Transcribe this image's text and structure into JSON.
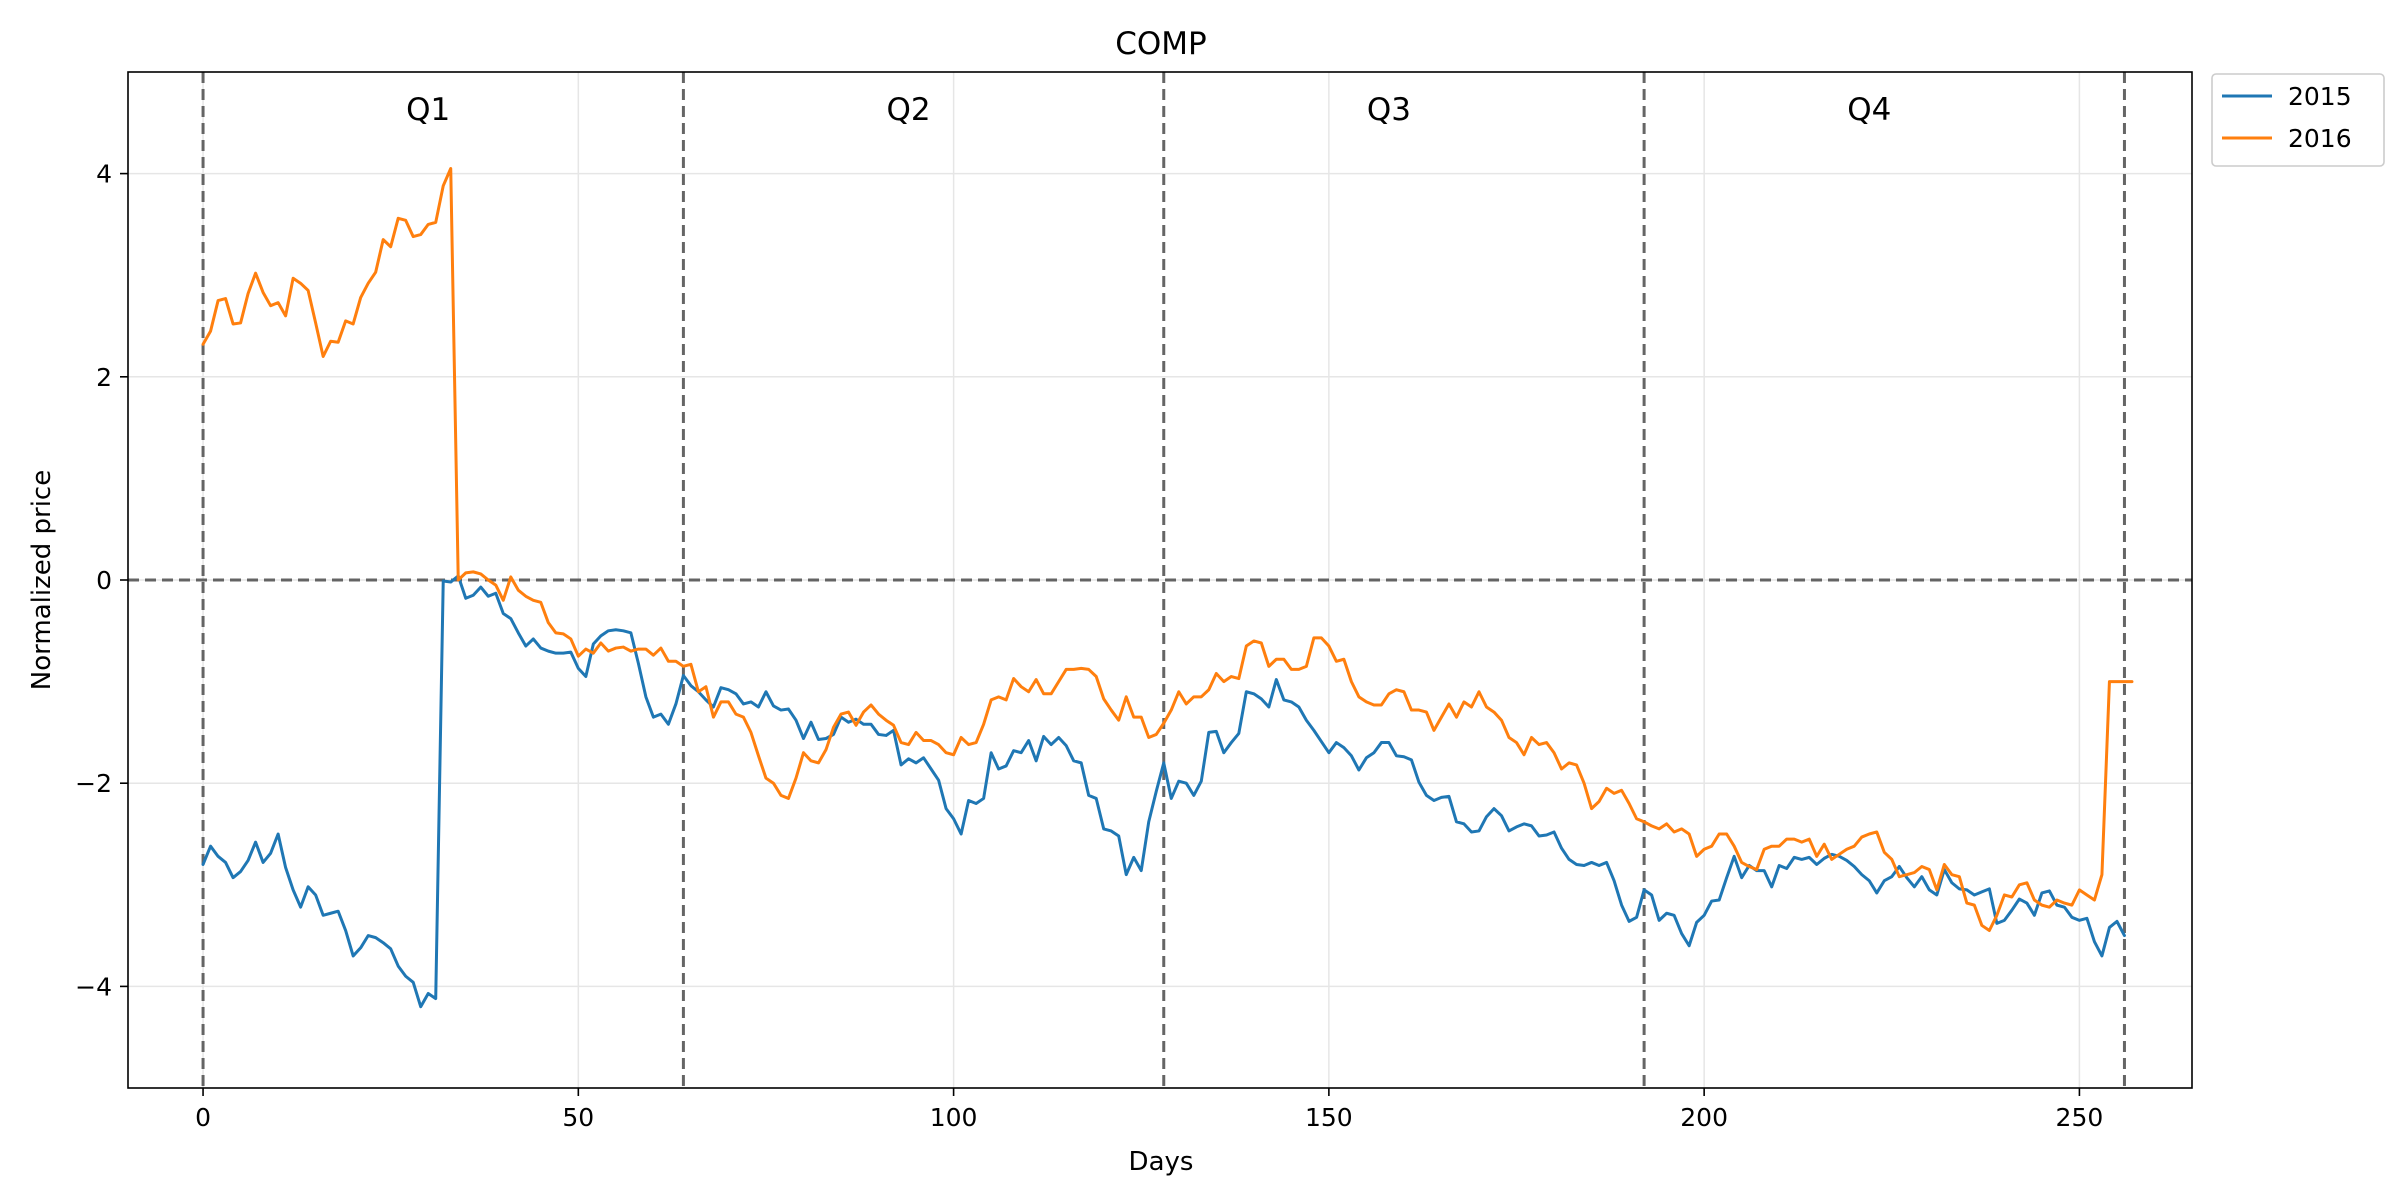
{
  "chart_data": {
    "type": "line",
    "title": "COMP",
    "xlabel": "Days",
    "ylabel": "Normalized price",
    "xlim": [
      -10,
      265
    ],
    "ylim": [
      -5,
      5
    ],
    "xticks": [
      0,
      50,
      100,
      150,
      200,
      250
    ],
    "yticks": [
      -4,
      -2,
      0,
      2,
      4
    ],
    "ytick_labels": [
      "−4",
      "−2",
      "0",
      "2",
      "4"
    ],
    "grid": true,
    "legend_position": "outside-top-right",
    "hlines": [
      0
    ],
    "vlines": [
      0,
      64,
      128,
      192,
      256
    ],
    "quarters": [
      {
        "label": "Q1",
        "x": 30
      },
      {
        "label": "Q2",
        "x": 94
      },
      {
        "label": "Q3",
        "x": 158
      },
      {
        "label": "Q4",
        "x": 222
      }
    ],
    "series": [
      {
        "name": "2015",
        "color": "#1f77b4",
        "values": [
          -2.8,
          -2.62,
          -2.72,
          -2.78,
          -2.93,
          -2.87,
          -2.76,
          -2.58,
          -2.78,
          -2.69,
          -2.5,
          -2.83,
          -3.05,
          -3.22,
          -3.02,
          -3.1,
          -3.3,
          -3.28,
          -3.26,
          -3.45,
          -3.7,
          -3.62,
          -3.5,
          -3.52,
          -3.57,
          -3.63,
          -3.8,
          -3.9,
          -3.96,
          -4.2,
          -4.07,
          -4.12,
          -0.01,
          -0.02,
          0.04,
          -0.18,
          -0.15,
          -0.07,
          -0.16,
          -0.13,
          -0.33,
          -0.38,
          -0.52,
          -0.65,
          -0.58,
          -0.67,
          -0.7,
          -0.72,
          -0.72,
          -0.71,
          -0.87,
          -0.95,
          -0.63,
          -0.55,
          -0.5,
          -0.49,
          -0.5,
          -0.52,
          -0.82,
          -1.15,
          -1.35,
          -1.32,
          -1.42,
          -1.22,
          -0.94,
          -1.04,
          -1.1,
          -1.18,
          -1.25,
          -1.06,
          -1.08,
          -1.12,
          -1.22,
          -1.2,
          -1.25,
          -1.1,
          -1.24,
          -1.28,
          -1.27,
          -1.38,
          -1.56,
          -1.4,
          -1.57,
          -1.56,
          -1.52,
          -1.35,
          -1.4,
          -1.37,
          -1.42,
          -1.42,
          -1.52,
          -1.53,
          -1.48,
          -1.82,
          -1.76,
          -1.8,
          -1.75,
          -1.86,
          -1.97,
          -2.25,
          -2.35,
          -2.5,
          -2.17,
          -2.2,
          -2.15,
          -1.7,
          -1.86,
          -1.83,
          -1.68,
          -1.7,
          -1.58,
          -1.78,
          -1.54,
          -1.62,
          -1.55,
          -1.63,
          -1.78,
          -1.8,
          -2.12,
          -2.15,
          -2.45,
          -2.47,
          -2.52,
          -2.9,
          -2.73,
          -2.86,
          -2.38,
          -2.08,
          -1.8,
          -2.15,
          -1.98,
          -2.0,
          -2.12,
          -1.98,
          -1.5,
          -1.49,
          -1.7,
          -1.6,
          -1.51,
          -1.1,
          -1.12,
          -1.17,
          -1.25,
          -0.98,
          -1.18,
          -1.2,
          -1.25,
          -1.38,
          -1.48,
          -1.59,
          -1.7,
          -1.6,
          -1.65,
          -1.73,
          -1.87,
          -1.75,
          -1.7,
          -1.6,
          -1.6,
          -1.73,
          -1.74,
          -1.77,
          -1.99,
          -2.12,
          -2.17,
          -2.14,
          -2.13,
          -2.38,
          -2.4,
          -2.48,
          -2.47,
          -2.33,
          -2.25,
          -2.32,
          -2.47,
          -2.43,
          -2.4,
          -2.42,
          -2.52,
          -2.51,
          -2.48,
          -2.64,
          -2.75,
          -2.8,
          -2.81,
          -2.78,
          -2.81,
          -2.78,
          -2.96,
          -3.2,
          -3.36,
          -3.32,
          -3.05,
          -3.1,
          -3.35,
          -3.28,
          -3.3,
          -3.48,
          -3.6,
          -3.37,
          -3.3,
          -3.16,
          -3.15,
          -2.93,
          -2.72,
          -2.93,
          -2.81,
          -2.86,
          -2.86,
          -3.02,
          -2.81,
          -2.84,
          -2.73,
          -2.75,
          -2.73,
          -2.8,
          -2.74,
          -2.7,
          -2.72,
          -2.76,
          -2.82,
          -2.9,
          -2.96,
          -3.08,
          -2.96,
          -2.92,
          -2.82,
          -2.93,
          -3.02,
          -2.92,
          -3.05,
          -3.1,
          -2.85,
          -2.98,
          -3.04,
          -3.05,
          -3.1,
          -3.07,
          -3.04,
          -3.38,
          -3.35,
          -3.25,
          -3.14,
          -3.18,
          -3.3,
          -3.08,
          -3.06,
          -3.2,
          -3.22,
          -3.32,
          -3.35,
          -3.33,
          -3.56,
          -3.7,
          -3.42,
          -3.36,
          -3.5
        ],
        "values_start_x": 0
      },
      {
        "name": "2016",
        "color": "#ff7f0e",
        "values": [
          2.32,
          2.45,
          2.75,
          2.77,
          2.52,
          2.53,
          2.82,
          3.02,
          2.83,
          2.7,
          2.73,
          2.6,
          2.97,
          2.92,
          2.85,
          2.53,
          2.2,
          2.35,
          2.34,
          2.55,
          2.52,
          2.78,
          2.92,
          3.03,
          3.35,
          3.28,
          3.56,
          3.54,
          3.38,
          3.4,
          3.5,
          3.52,
          3.88,
          4.05,
          0.0,
          0.07,
          0.08,
          0.06,
          0.0,
          -0.05,
          -0.2,
          0.03,
          -0.1,
          -0.16,
          -0.2,
          -0.22,
          -0.42,
          -0.52,
          -0.53,
          -0.58,
          -0.75,
          -0.68,
          -0.72,
          -0.62,
          -0.7,
          -0.67,
          -0.66,
          -0.7,
          -0.68,
          -0.68,
          -0.74,
          -0.67,
          -0.8,
          -0.8,
          -0.85,
          -0.83,
          -1.1,
          -1.05,
          -1.35,
          -1.2,
          -1.2,
          -1.32,
          -1.35,
          -1.5,
          -1.73,
          -1.95,
          -2.0,
          -2.12,
          -2.15,
          -1.95,
          -1.7,
          -1.78,
          -1.8,
          -1.67,
          -1.45,
          -1.32,
          -1.3,
          -1.43,
          -1.3,
          -1.23,
          -1.32,
          -1.38,
          -1.43,
          -1.6,
          -1.62,
          -1.5,
          -1.58,
          -1.58,
          -1.62,
          -1.7,
          -1.72,
          -1.55,
          -1.62,
          -1.6,
          -1.42,
          -1.18,
          -1.15,
          -1.18,
          -0.97,
          -1.05,
          -1.1,
          -0.98,
          -1.12,
          -1.12,
          -1.0,
          -0.88,
          -0.88,
          -0.87,
          -0.88,
          -0.95,
          -1.17,
          -1.28,
          -1.38,
          -1.15,
          -1.35,
          -1.35,
          -1.55,
          -1.52,
          -1.41,
          -1.28,
          -1.1,
          -1.22,
          -1.15,
          -1.15,
          -1.08,
          -0.92,
          -1.0,
          -0.95,
          -0.97,
          -0.65,
          -0.6,
          -0.62,
          -0.85,
          -0.78,
          -0.78,
          -0.88,
          -0.88,
          -0.85,
          -0.57,
          -0.57,
          -0.65,
          -0.8,
          -0.78,
          -1.0,
          -1.15,
          -1.2,
          -1.23,
          -1.23,
          -1.12,
          -1.08,
          -1.1,
          -1.28,
          -1.28,
          -1.3,
          -1.48,
          -1.35,
          -1.22,
          -1.35,
          -1.2,
          -1.25,
          -1.1,
          -1.25,
          -1.3,
          -1.38,
          -1.55,
          -1.6,
          -1.72,
          -1.55,
          -1.62,
          -1.6,
          -1.7,
          -1.86,
          -1.8,
          -1.82,
          -2.0,
          -2.25,
          -2.18,
          -2.05,
          -2.1,
          -2.07,
          -2.2,
          -2.35,
          -2.38,
          -2.42,
          -2.45,
          -2.4,
          -2.48,
          -2.45,
          -2.5,
          -2.72,
          -2.65,
          -2.62,
          -2.5,
          -2.5,
          -2.62,
          -2.78,
          -2.82,
          -2.85,
          -2.65,
          -2.62,
          -2.62,
          -2.55,
          -2.55,
          -2.58,
          -2.55,
          -2.72,
          -2.6,
          -2.75,
          -2.7,
          -2.65,
          -2.62,
          -2.53,
          -2.5,
          -2.48,
          -2.68,
          -2.75,
          -2.92,
          -2.9,
          -2.88,
          -2.82,
          -2.85,
          -3.05,
          -2.8,
          -2.9,
          -2.92,
          -3.18,
          -3.2,
          -3.4,
          -3.45,
          -3.3,
          -3.1,
          -3.12,
          -3.0,
          -2.98,
          -3.15,
          -3.2,
          -3.22,
          -3.15,
          -3.18,
          -3.2,
          -3.05,
          -3.1,
          -3.15,
          -2.9,
          -1.0,
          -1.0,
          -1.0,
          -1.0
        ],
        "values_start_x": 0
      }
    ]
  }
}
